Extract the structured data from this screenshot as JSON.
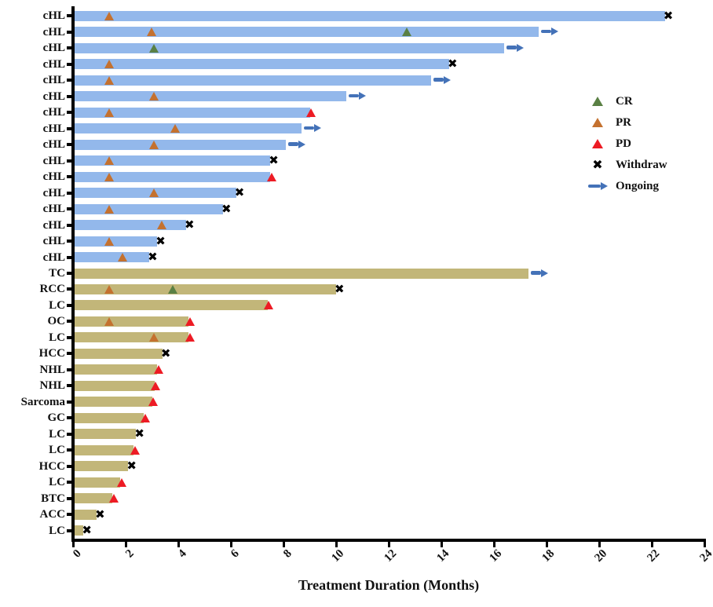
{
  "axis_title": "Treatment Duration (Months)",
  "colors": {
    "chl_bar": "#93b8eb",
    "other_bar": "#c2b679",
    "cr": "#5a8044",
    "pr": "#c4712f",
    "pd": "#ed1b24",
    "withdraw": "#000000",
    "ongoing": "#4472b8",
    "axis": "#000000"
  },
  "legend": [
    {
      "label": "CR",
      "marker": "triangle-icon",
      "color": "#5a8044"
    },
    {
      "label": "PR",
      "marker": "triangle-icon",
      "color": "#c4712f"
    },
    {
      "label": "PD",
      "marker": "triangle-icon",
      "color": "#ed1b24"
    },
    {
      "label": "Withdraw",
      "marker": "x-icon",
      "color": "#000000"
    },
    {
      "label": "Ongoing",
      "marker": "arrow-icon",
      "color": "#4472b8"
    }
  ],
  "chart_data": {
    "type": "bar",
    "orientation": "horizontal",
    "title": "",
    "xlabel": "Treatment Duration (Months)",
    "ylabel": "",
    "xlim": [
      0,
      24
    ],
    "x_tick_labels": [
      0,
      2,
      4,
      6,
      8,
      10,
      12,
      14,
      16,
      18,
      20,
      22,
      24
    ],
    "legend_position": "right-middle",
    "grid": false,
    "marker_meanings": {
      "CR": "complete response",
      "PR": "partial response",
      "PD": "progressive disease",
      "withdraw": "withdrew",
      "ongoing": "treatment ongoing"
    },
    "rows": [
      {
        "label": "cHL",
        "duration": 22.5,
        "end": "withdraw",
        "markers": [
          {
            "type": "PR",
            "x": 1.4
          }
        ]
      },
      {
        "label": "cHL",
        "duration": 17.7,
        "end": "ongoing",
        "markers": [
          {
            "type": "PR",
            "x": 3.0
          },
          {
            "type": "CR",
            "x": 12.7
          }
        ]
      },
      {
        "label": "cHL",
        "duration": 16.4,
        "end": "ongoing",
        "markers": [
          {
            "type": "CR",
            "x": 3.1
          }
        ]
      },
      {
        "label": "cHL",
        "duration": 14.3,
        "end": "withdraw",
        "markers": [
          {
            "type": "PR",
            "x": 1.4
          }
        ]
      },
      {
        "label": "cHL",
        "duration": 13.6,
        "end": "ongoing",
        "markers": [
          {
            "type": "PR",
            "x": 1.4
          }
        ]
      },
      {
        "label": "cHL",
        "duration": 10.4,
        "end": "ongoing",
        "markers": [
          {
            "type": "PR",
            "x": 3.1
          }
        ]
      },
      {
        "label": "cHL",
        "duration": 9.0,
        "end": "PD",
        "markers": [
          {
            "type": "PR",
            "x": 1.4
          }
        ]
      },
      {
        "label": "cHL",
        "duration": 8.7,
        "end": "ongoing",
        "markers": [
          {
            "type": "PR",
            "x": 3.9
          }
        ]
      },
      {
        "label": "cHL",
        "duration": 8.1,
        "end": "ongoing",
        "markers": [
          {
            "type": "PR",
            "x": 3.1
          }
        ]
      },
      {
        "label": "cHL",
        "duration": 7.5,
        "end": "withdraw",
        "markers": [
          {
            "type": "PR",
            "x": 1.4
          }
        ]
      },
      {
        "label": "cHL",
        "duration": 7.5,
        "end": "PD",
        "markers": [
          {
            "type": "PR",
            "x": 1.4
          }
        ]
      },
      {
        "label": "cHL",
        "duration": 6.2,
        "end": "withdraw",
        "markers": [
          {
            "type": "PR",
            "x": 3.1
          }
        ]
      },
      {
        "label": "cHL",
        "duration": 5.7,
        "end": "withdraw",
        "markers": [
          {
            "type": "PR",
            "x": 1.4
          }
        ]
      },
      {
        "label": "cHL",
        "duration": 4.3,
        "end": "withdraw",
        "markers": [
          {
            "type": "PR",
            "x": 3.4
          }
        ]
      },
      {
        "label": "cHL",
        "duration": 3.2,
        "end": "withdraw",
        "markers": [
          {
            "type": "PR",
            "x": 1.4
          }
        ]
      },
      {
        "label": "cHL",
        "duration": 2.9,
        "end": "withdraw",
        "markers": [
          {
            "type": "PR",
            "x": 1.9
          }
        ]
      },
      {
        "label": "TC",
        "duration": 17.3,
        "end": "ongoing",
        "markers": []
      },
      {
        "label": "RCC",
        "duration": 10.0,
        "end": "withdraw",
        "markers": [
          {
            "type": "PR",
            "x": 1.4
          },
          {
            "type": "CR",
            "x": 3.8
          }
        ]
      },
      {
        "label": "LC",
        "duration": 7.4,
        "end": "PD",
        "markers": []
      },
      {
        "label": "OC",
        "duration": 4.4,
        "end": "PD",
        "markers": [
          {
            "type": "PR",
            "x": 1.4
          }
        ]
      },
      {
        "label": "LC",
        "duration": 4.4,
        "end": "PD",
        "markers": [
          {
            "type": "PR",
            "x": 3.1
          }
        ]
      },
      {
        "label": "HCC",
        "duration": 3.4,
        "end": "withdraw",
        "markers": []
      },
      {
        "label": "NHL",
        "duration": 3.2,
        "end": "PD",
        "markers": []
      },
      {
        "label": "NHL",
        "duration": 3.1,
        "end": "PD",
        "markers": []
      },
      {
        "label": "Sarcoma",
        "duration": 3.0,
        "end": "PD",
        "markers": []
      },
      {
        "label": "GC",
        "duration": 2.7,
        "end": "PD",
        "markers": []
      },
      {
        "label": "LC",
        "duration": 2.4,
        "end": "withdraw",
        "markers": []
      },
      {
        "label": "LC",
        "duration": 2.3,
        "end": "PD",
        "markers": []
      },
      {
        "label": "HCC",
        "duration": 2.1,
        "end": "withdraw",
        "markers": []
      },
      {
        "label": "LC",
        "duration": 1.8,
        "end": "PD",
        "markers": []
      },
      {
        "label": "BTC",
        "duration": 1.5,
        "end": "PD",
        "markers": []
      },
      {
        "label": "ACC",
        "duration": 0.9,
        "end": "withdraw",
        "markers": []
      },
      {
        "label": "LC",
        "duration": 0.4,
        "end": "withdraw",
        "markers": []
      }
    ]
  }
}
